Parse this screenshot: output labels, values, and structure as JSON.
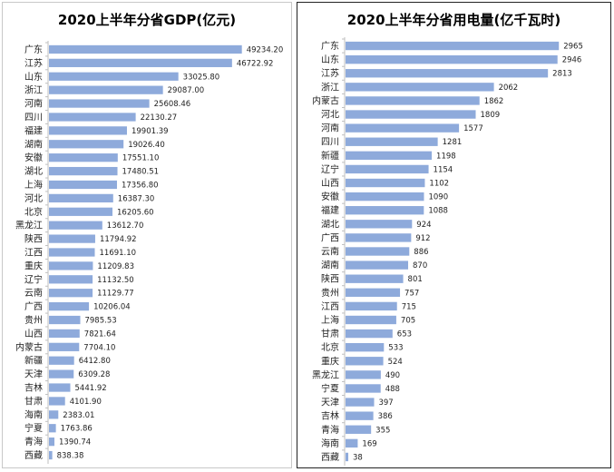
{
  "chart_data": [
    {
      "type": "bar",
      "orientation": "horizontal",
      "title": "2020上半年分省GDP(亿元)",
      "bar_color": "#8eaadb",
      "xlim": [
        0,
        50000
      ],
      "categories": [
        "广东",
        "江苏",
        "山东",
        "浙江",
        "河南",
        "四川",
        "福建",
        "湖南",
        "安徽",
        "湖北",
        "上海",
        "河北",
        "北京",
        "黑龙江",
        "陕西",
        "江西",
        "重庆",
        "辽宁",
        "云南",
        "广西",
        "贵州",
        "山西",
        "内蒙古",
        "新疆",
        "天津",
        "吉林",
        "甘肃",
        "海南",
        "宁夏",
        "青海",
        "西藏"
      ],
      "values": [
        49234.2,
        46722.92,
        33025.8,
        29087.0,
        25608.46,
        22130.27,
        19901.39,
        19026.4,
        17551.1,
        17480.51,
        17356.8,
        16387.3,
        16205.6,
        13612.7,
        11794.92,
        11691.1,
        11209.83,
        11132.5,
        11129.77,
        10206.04,
        7985.53,
        7821.64,
        7704.1,
        6412.8,
        6309.28,
        5441.92,
        4101.9,
        2383.01,
        1763.86,
        1390.74,
        838.38
      ],
      "value_labels": [
        "49234.20",
        "46722.92",
        "33025.80",
        "29087.00",
        "25608.46",
        "22130.27",
        "19901.39",
        "19026.40",
        "17551.10",
        "17480.51",
        "17356.80",
        "16387.30",
        "16205.60",
        "13612.70",
        "11794.92",
        "11691.10",
        "11209.83",
        "11132.50",
        "11129.77",
        "10206.04",
        "7985.53",
        "7821.64",
        "7704.10",
        "6412.80",
        "6309.28",
        "5441.92",
        "4101.90",
        "2383.01",
        "1763.86",
        "1390.74",
        "838.38"
      ]
    },
    {
      "type": "bar",
      "orientation": "horizontal",
      "title": "2020上半年分省用电量(亿千瓦时)",
      "bar_color": "#8eaadb",
      "xlim": [
        0,
        3000
      ],
      "categories": [
        "广东",
        "山东",
        "江苏",
        "浙江",
        "内蒙古",
        "河北",
        "河南",
        "四川",
        "新疆",
        "辽宁",
        "山西",
        "安徽",
        "福建",
        "湖北",
        "广西",
        "云南",
        "湖南",
        "陕西",
        "贵州",
        "江西",
        "上海",
        "甘肃",
        "北京",
        "重庆",
        "黑龙江",
        "宁夏",
        "天津",
        "吉林",
        "青海",
        "海南",
        "西藏"
      ],
      "values": [
        2965,
        2946,
        2813,
        2062,
        1862,
        1809,
        1577,
        1281,
        1198,
        1154,
        1102,
        1090,
        1088,
        924,
        912,
        886,
        870,
        801,
        757,
        715,
        705,
        653,
        533,
        524,
        490,
        488,
        397,
        386,
        355,
        169,
        38
      ],
      "value_labels": [
        "2965",
        "2946",
        "2813",
        "2062",
        "1862",
        "1809",
        "1577",
        "1281",
        "1198",
        "1154",
        "1102",
        "1090",
        "1088",
        "924",
        "912",
        "886",
        "870",
        "801",
        "757",
        "715",
        "705",
        "653",
        "533",
        "524",
        "490",
        "488",
        "397",
        "386",
        "355",
        "169",
        "38"
      ]
    }
  ]
}
